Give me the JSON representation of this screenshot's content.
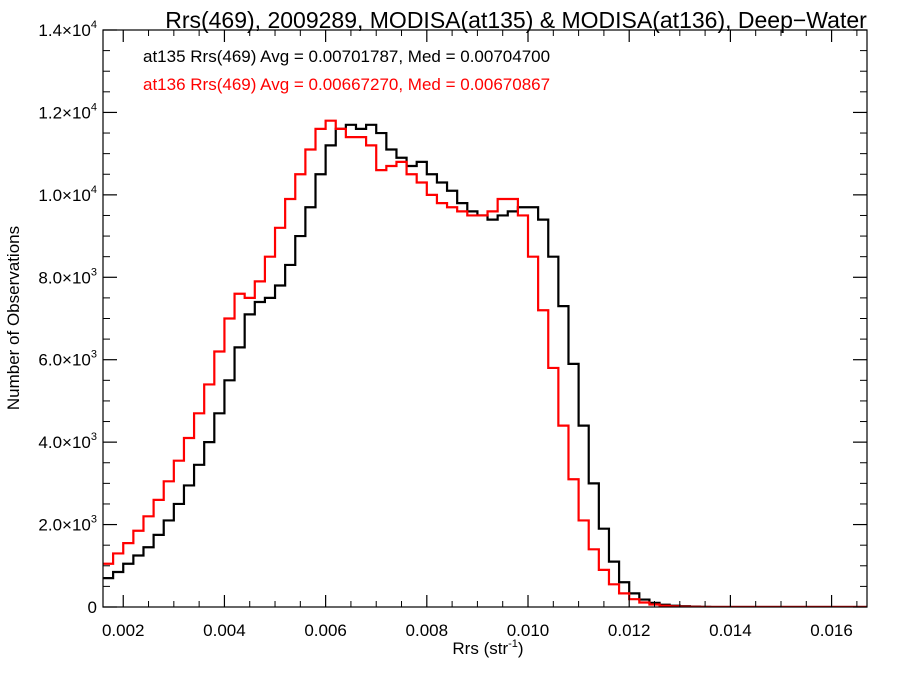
{
  "chart_data": {
    "type": "line",
    "title": "Rrs(469), 2009289, MODISA(at135) & MODISA(at136), Deep−Water",
    "xlabel": "Rrs (str",
    "xlabel_sup": "-1",
    "xlabel_close": ")",
    "ylabel": "Number of Observations",
    "xlim": [
      0.0016,
      0.0167
    ],
    "ylim": [
      0,
      14000
    ],
    "x_ticks": [
      {
        "value": 0.002,
        "label": "0.002"
      },
      {
        "value": 0.004,
        "label": "0.004"
      },
      {
        "value": 0.006,
        "label": "0.006"
      },
      {
        "value": 0.008,
        "label": "0.008"
      },
      {
        "value": 0.01,
        "label": "0.010"
      },
      {
        "value": 0.012,
        "label": "0.012"
      },
      {
        "value": 0.014,
        "label": "0.014"
      },
      {
        "value": 0.016,
        "label": "0.016"
      }
    ],
    "y_ticks": [
      {
        "value": 0,
        "mant": "0",
        "exp": ""
      },
      {
        "value": 2000,
        "mant": "2.0×10",
        "exp": "3"
      },
      {
        "value": 4000,
        "mant": "4.0×10",
        "exp": "3"
      },
      {
        "value": 6000,
        "mant": "6.0×10",
        "exp": "3"
      },
      {
        "value": 8000,
        "mant": "8.0×10",
        "exp": "3"
      },
      {
        "value": 10000,
        "mant": "1.0×10",
        "exp": "4"
      },
      {
        "value": 12000,
        "mant": "1.2×10",
        "exp": "4"
      },
      {
        "value": 14000,
        "mant": "1.4×10",
        "exp": "4"
      }
    ],
    "legend": [
      {
        "text": "at135 Rrs(469) Avg = 0.00701787, Med = 0.00704700",
        "color": "#000000"
      },
      {
        "text": "at136 Rrs(469) Avg = 0.00667270, Med = 0.00670867",
        "color": "#ff0000"
      }
    ],
    "series": [
      {
        "color": "#000000",
        "step": true,
        "points": [
          [
            0.0016,
            700
          ],
          [
            0.0018,
            850
          ],
          [
            0.002,
            1050
          ],
          [
            0.0022,
            1250
          ],
          [
            0.0024,
            1450
          ],
          [
            0.0026,
            1750
          ],
          [
            0.0028,
            2100
          ],
          [
            0.003,
            2500
          ],
          [
            0.0032,
            2950
          ],
          [
            0.0034,
            3450
          ],
          [
            0.0036,
            4000
          ],
          [
            0.0038,
            4700
          ],
          [
            0.004,
            5500
          ],
          [
            0.0042,
            6300
          ],
          [
            0.0044,
            7100
          ],
          [
            0.0046,
            7400
          ],
          [
            0.0048,
            7500
          ],
          [
            0.005,
            7800
          ],
          [
            0.0052,
            8300
          ],
          [
            0.0054,
            9000
          ],
          [
            0.0056,
            9700
          ],
          [
            0.0058,
            10500
          ],
          [
            0.006,
            11200
          ],
          [
            0.0062,
            11600
          ],
          [
            0.0064,
            11700
          ],
          [
            0.0066,
            11600
          ],
          [
            0.0068,
            11700
          ],
          [
            0.007,
            11500
          ],
          [
            0.0072,
            11100
          ],
          [
            0.0074,
            10900
          ],
          [
            0.0076,
            10700
          ],
          [
            0.0078,
            10800
          ],
          [
            0.008,
            10500
          ],
          [
            0.0082,
            10300
          ],
          [
            0.0084,
            10100
          ],
          [
            0.0086,
            9800
          ],
          [
            0.0088,
            9600
          ],
          [
            0.009,
            9500
          ],
          [
            0.0092,
            9400
          ],
          [
            0.0094,
            9500
          ],
          [
            0.0096,
            9600
          ],
          [
            0.0098,
            9700
          ],
          [
            0.01,
            9700
          ],
          [
            0.0102,
            9400
          ],
          [
            0.0104,
            8500
          ],
          [
            0.0106,
            7300
          ],
          [
            0.0108,
            5900
          ],
          [
            0.011,
            4400
          ],
          [
            0.0112,
            3000
          ],
          [
            0.0114,
            1900
          ],
          [
            0.0116,
            1100
          ],
          [
            0.0118,
            600
          ],
          [
            0.012,
            330
          ],
          [
            0.0122,
            180
          ],
          [
            0.0124,
            100
          ],
          [
            0.0126,
            55
          ],
          [
            0.0128,
            30
          ],
          [
            0.013,
            18
          ],
          [
            0.0132,
            10
          ],
          [
            0.0134,
            5
          ],
          [
            0.0136,
            2
          ],
          [
            0.014,
            0
          ],
          [
            0.0167,
            0
          ]
        ]
      },
      {
        "color": "#ff0000",
        "step": true,
        "points": [
          [
            0.0016,
            1050
          ],
          [
            0.0018,
            1300
          ],
          [
            0.002,
            1550
          ],
          [
            0.0022,
            1850
          ],
          [
            0.0024,
            2200
          ],
          [
            0.0026,
            2600
          ],
          [
            0.0028,
            3050
          ],
          [
            0.003,
            3550
          ],
          [
            0.0032,
            4100
          ],
          [
            0.0034,
            4700
          ],
          [
            0.0036,
            5400
          ],
          [
            0.0038,
            6200
          ],
          [
            0.004,
            7000
          ],
          [
            0.0042,
            7600
          ],
          [
            0.0044,
            7500
          ],
          [
            0.0046,
            7900
          ],
          [
            0.0048,
            8500
          ],
          [
            0.005,
            9200
          ],
          [
            0.0052,
            9900
          ],
          [
            0.0054,
            10500
          ],
          [
            0.0056,
            11100
          ],
          [
            0.0058,
            11600
          ],
          [
            0.006,
            11800
          ],
          [
            0.0062,
            11600
          ],
          [
            0.0064,
            11400
          ],
          [
            0.0066,
            11400
          ],
          [
            0.0068,
            11200
          ],
          [
            0.007,
            10600
          ],
          [
            0.0072,
            10700
          ],
          [
            0.0074,
            10800
          ],
          [
            0.0076,
            10500
          ],
          [
            0.0078,
            10300
          ],
          [
            0.008,
            10000
          ],
          [
            0.0082,
            9800
          ],
          [
            0.0084,
            9700
          ],
          [
            0.0086,
            9600
          ],
          [
            0.0088,
            9500
          ],
          [
            0.009,
            9500
          ],
          [
            0.0092,
            9600
          ],
          [
            0.0094,
            9900
          ],
          [
            0.0096,
            9900
          ],
          [
            0.0098,
            9500
          ],
          [
            0.01,
            8500
          ],
          [
            0.0102,
            7200
          ],
          [
            0.0104,
            5800
          ],
          [
            0.0106,
            4400
          ],
          [
            0.0108,
            3100
          ],
          [
            0.011,
            2100
          ],
          [
            0.0112,
            1400
          ],
          [
            0.0114,
            900
          ],
          [
            0.0116,
            550
          ],
          [
            0.0118,
            330
          ],
          [
            0.012,
            190
          ],
          [
            0.0122,
            110
          ],
          [
            0.0124,
            60
          ],
          [
            0.0126,
            30
          ],
          [
            0.0128,
            15
          ],
          [
            0.013,
            8
          ],
          [
            0.0132,
            4
          ],
          [
            0.0134,
            0
          ],
          [
            0.0167,
            0
          ]
        ]
      }
    ]
  }
}
